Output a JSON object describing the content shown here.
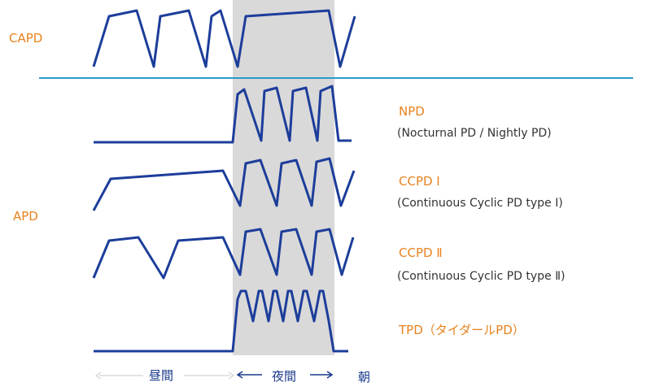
{
  "colors": {
    "wave": "#1c3d9a",
    "night_band": "#d9d9d9",
    "divider": "#2b9ac8",
    "mode_label": "#e8821e",
    "description": "#333333",
    "time_axis": "#1a3a8c",
    "day_arrow": "#c8c8c8"
  },
  "modes": {
    "capd": "CAPD",
    "apd": "APD"
  },
  "entries": [
    {
      "id": "npd",
      "name": "NPD",
      "description": "(Nocturnal PD / Nightly PD)"
    },
    {
      "id": "ccpd1",
      "name": "CCPD Ⅰ",
      "description": "(Continuous  Cyclic PD type Ⅰ)"
    },
    {
      "id": "ccpd2",
      "name": "CCPD Ⅱ",
      "description": "(Continuous  Cyclic PD type Ⅱ)"
    },
    {
      "id": "tpd",
      "name": "TPD（タイダールPD）",
      "description": ""
    }
  ],
  "time_axis": {
    "day": "昼間",
    "night": "夜間",
    "morning": "朝"
  }
}
